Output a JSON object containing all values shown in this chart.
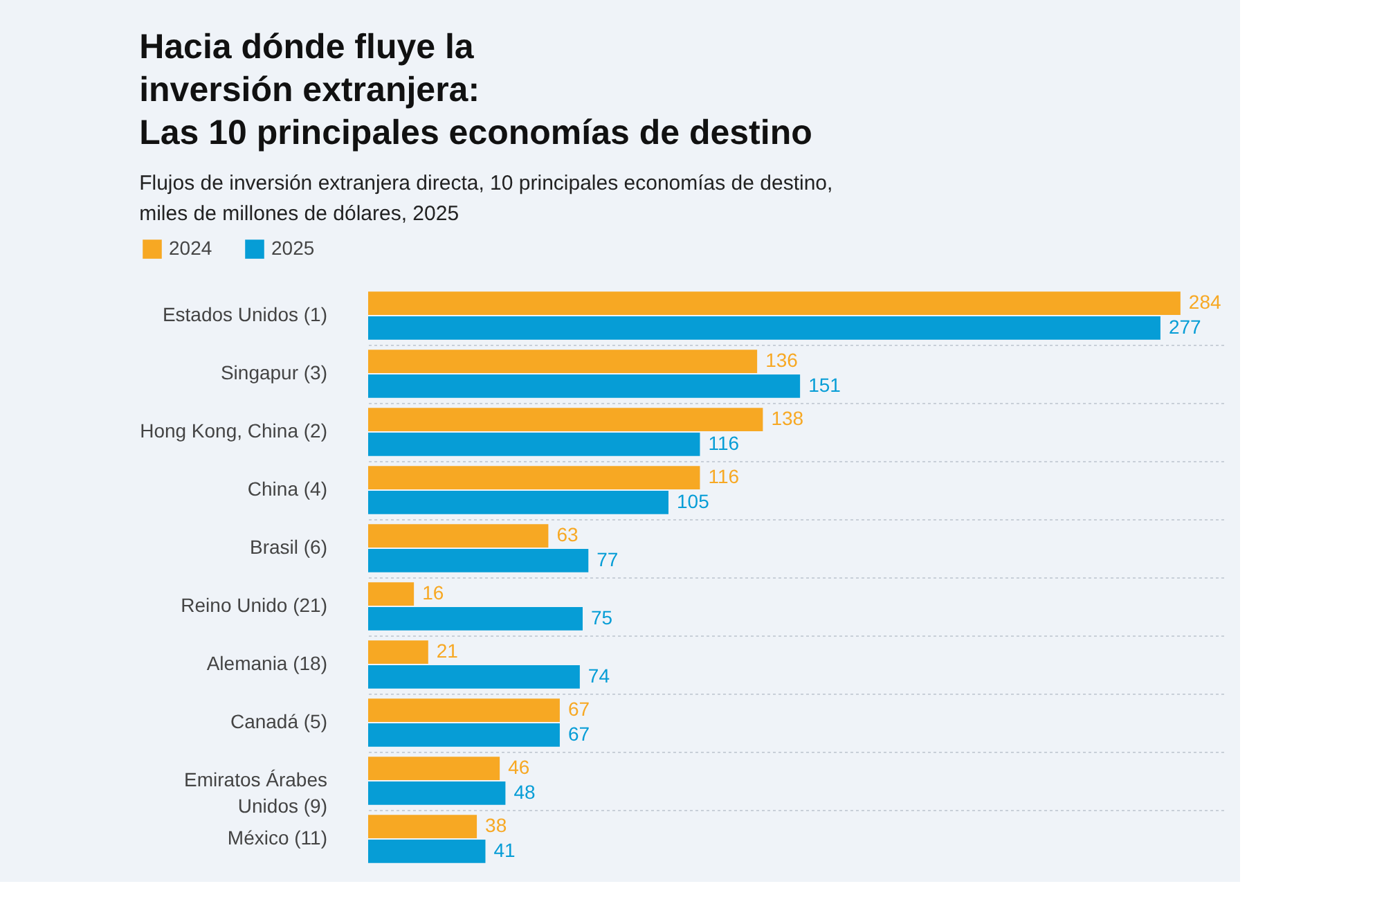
{
  "chart_data": {
    "type": "bar",
    "orientation": "horizontal",
    "title": "Hacia dónde fluye la\ninversión extranjera:\nLas 10 principales economías de destino",
    "subtitle": "Flujos de inversión extranjera directa, 10 principales economías de destino, miles de millones de dólares, 2025",
    "categories": [
      "Estados Unidos (1)",
      "Singapur (3)",
      "Hong Kong, China (2)",
      "China (4)",
      "Brasil (6)",
      "Reino Unido (21)",
      "Alemania (18)",
      "Canadá (5)",
      "Emiratos Árabes Unidos (9)",
      "México (11)"
    ],
    "series": [
      {
        "name": "2024",
        "color": "#f7a823",
        "values": [
          284,
          136,
          138,
          116,
          63,
          16,
          21,
          67,
          46,
          38
        ]
      },
      {
        "name": "2025",
        "color": "#069dd6",
        "values": [
          277,
          151,
          116,
          105,
          77,
          75,
          74,
          67,
          48,
          41
        ]
      }
    ],
    "data_labels": true,
    "grid": "y",
    "legend": "top left"
  }
}
